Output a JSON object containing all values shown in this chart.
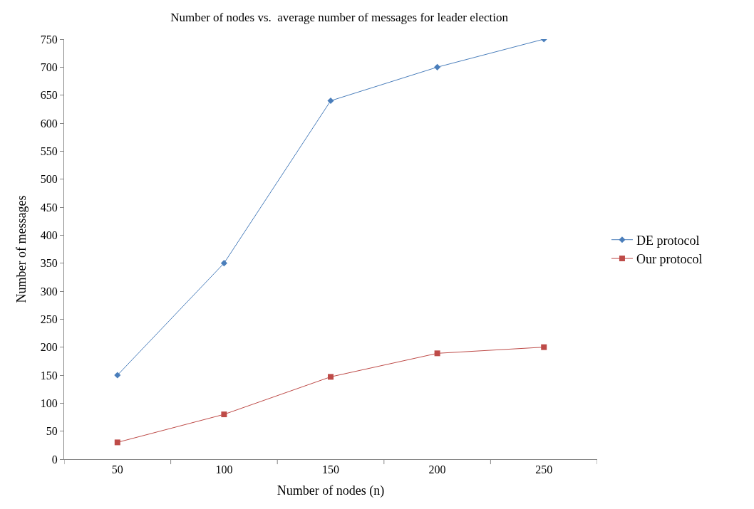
{
  "chart_data": {
    "type": "line",
    "title": "Number of nodes vs.  average number of messages for leader election",
    "xlabel": "Number of nodes (n)",
    "ylabel": "Number of messages",
    "categories": [
      "50",
      "100",
      "150",
      "200",
      "250"
    ],
    "series": [
      {
        "name": "DE protocol",
        "color": "#4a7ebb",
        "marker": "diamond",
        "values": [
          150,
          350,
          640,
          700,
          750
        ]
      },
      {
        "name": "Our protocol",
        "color": "#be4b48",
        "marker": "square",
        "values": [
          30,
          80,
          147,
          189,
          200
        ]
      }
    ],
    "ylim": [
      0,
      750
    ],
    "yticks": [
      0,
      50,
      100,
      150,
      200,
      250,
      300,
      350,
      400,
      450,
      500,
      550,
      600,
      650,
      700,
      750
    ],
    "legend": "right",
    "line_style": "solid"
  }
}
